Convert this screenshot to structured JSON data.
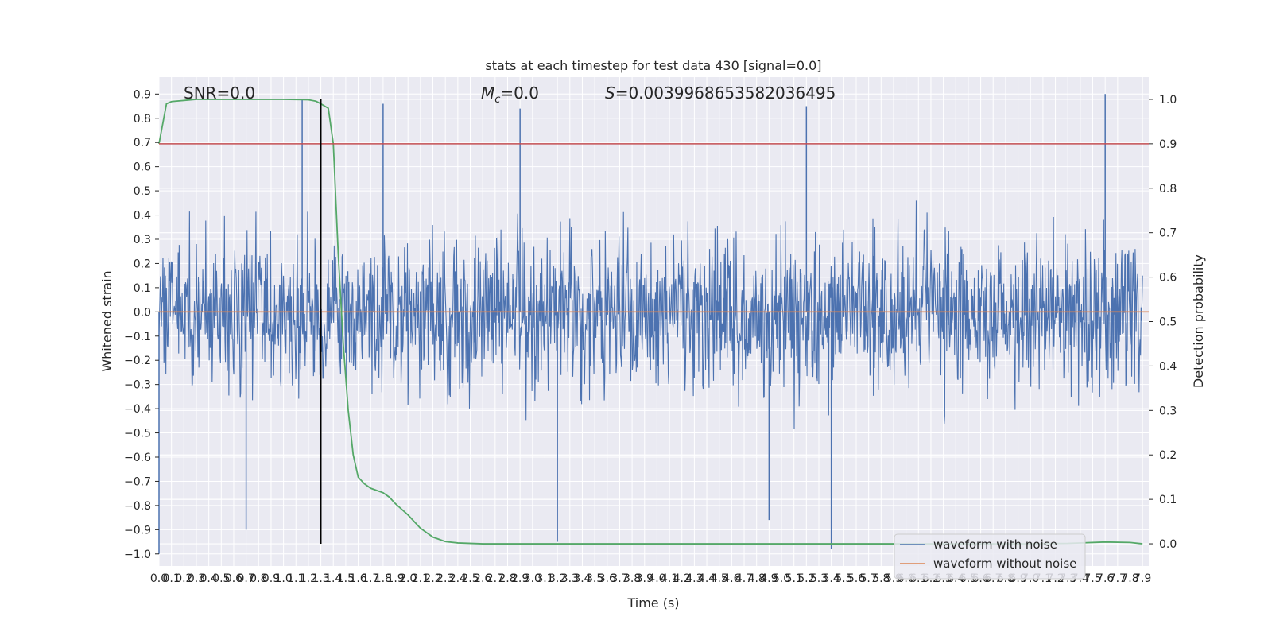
{
  "chart_data": {
    "type": "line",
    "title": "stats at each timestep for test data 430 [signal=0.0]",
    "annotations": {
      "snr": "SNR=0.0",
      "mc_symbol": "M",
      "mc_subscript": "c",
      "mc_value": "=0.0",
      "s_symbol": "S",
      "s_value": "=0.003996865358203649​5"
    },
    "xlabel": "Time (s)",
    "ylabel_left": "Whitened strain",
    "ylabel_right": "Detection probability",
    "xlim": [
      0.0,
      7.95
    ],
    "ylim_left": [
      -1.05,
      0.97
    ],
    "ylim_right": [
      -0.05,
      1.05
    ],
    "x_ticks": [
      "0.0",
      "0.1",
      "0.2",
      "0.3",
      "0.4",
      "0.5",
      "0.6",
      "0.7",
      "0.8",
      "0.9",
      "1.0",
      "1.1",
      "1.2",
      "1.3",
      "1.4",
      "1.5",
      "1.6",
      "1.7",
      "1.8",
      "1.9",
      "2.0",
      "2.1",
      "2.2",
      "2.3",
      "2.4",
      "2.5",
      "2.6",
      "2.7",
      "2.8",
      "2.9",
      "3.0",
      "3.1",
      "3.2",
      "3.3",
      "3.4",
      "3.5",
      "3.6",
      "3.7",
      "3.8",
      "3.9",
      "4.0",
      "4.1",
      "4.2",
      "4.3",
      "4.4",
      "4.5",
      "4.6",
      "4.7",
      "4.8",
      "4.9",
      "5.0",
      "5.1",
      "5.2",
      "5.3",
      "5.4",
      "5.5",
      "5.6",
      "5.7",
      "5.8",
      "5.9",
      "6.0",
      "6.1",
      "6.2",
      "6.3",
      "6.4",
      "6.5",
      "6.6",
      "6.7",
      "6.8",
      "6.9",
      "7.0",
      "7.1",
      "7.2",
      "7.3",
      "7.4",
      "7.5",
      "7.6",
      "7.7",
      "7.8",
      "7.9"
    ],
    "y_ticks_left": [
      "0.9",
      "0.8",
      "0.7",
      "0.6",
      "0.5",
      "0.4",
      "0.3",
      "0.2",
      "0.1",
      "0.0",
      "−0.1",
      "−0.2",
      "−0.3",
      "−0.4",
      "−0.5",
      "−0.6",
      "−0.7",
      "−0.8",
      "−0.9",
      "−1.0"
    ],
    "y_ticks_right": [
      "1.0",
      "0.9",
      "0.8",
      "0.7",
      "0.6",
      "0.5",
      "0.4",
      "0.3",
      "0.2",
      "0.1",
      "0.0"
    ],
    "grid": true,
    "legend_position": "bottom-right",
    "series": [
      {
        "name": "waveform with noise",
        "axis": "left",
        "color": "#4c72b0",
        "description_values": "dense noise between approx -1.0 and 0.9",
        "peaks_high": [
          [
            1.15,
            0.88
          ],
          [
            1.8,
            0.86
          ],
          [
            2.9,
            0.84
          ],
          [
            5.2,
            0.85
          ],
          [
            7.6,
            0.9
          ]
        ],
        "peaks_low": [
          [
            0.0,
            -1.0
          ],
          [
            0.7,
            -0.9
          ],
          [
            3.2,
            -0.95
          ],
          [
            4.9,
            -0.86
          ],
          [
            5.4,
            -0.98
          ]
        ]
      },
      {
        "name": "waveform without noise",
        "axis": "left",
        "color": "#dd8452",
        "x": [
          0.0,
          7.95
        ],
        "y": [
          0.0,
          0.0
        ]
      },
      {
        "name": "",
        "axis": "right",
        "color": "#55a868",
        "x": [
          0.0,
          0.06,
          0.1,
          0.3,
          0.6,
          1.0,
          1.2,
          1.26,
          1.3,
          1.36,
          1.4,
          1.44,
          1.48,
          1.52,
          1.56,
          1.6,
          1.65,
          1.7,
          1.8,
          1.85,
          1.9,
          2.0,
          2.1,
          2.2,
          2.3,
          2.4,
          2.6,
          3.0,
          4.0,
          5.0,
          6.0,
          7.0,
          7.3,
          7.6,
          7.8,
          7.9
        ],
        "y": [
          0.9,
          0.99,
          0.995,
          1.0,
          1.0,
          1.0,
          0.999,
          0.996,
          0.99,
          0.98,
          0.9,
          0.65,
          0.45,
          0.3,
          0.2,
          0.15,
          0.135,
          0.125,
          0.115,
          0.105,
          0.09,
          0.065,
          0.035,
          0.015,
          0.005,
          0.002,
          0.0,
          0.0,
          0.0,
          0.0,
          0.0,
          0.0,
          0.001,
          0.004,
          0.003,
          0.0
        ]
      }
    ],
    "threshold_line": {
      "axis": "right",
      "value": 0.9,
      "color": "#c44e52"
    },
    "vertical_marker": {
      "x": 1.3,
      "color": "#000000"
    },
    "legend": [
      "waveform with noise",
      "waveform without noise"
    ]
  }
}
